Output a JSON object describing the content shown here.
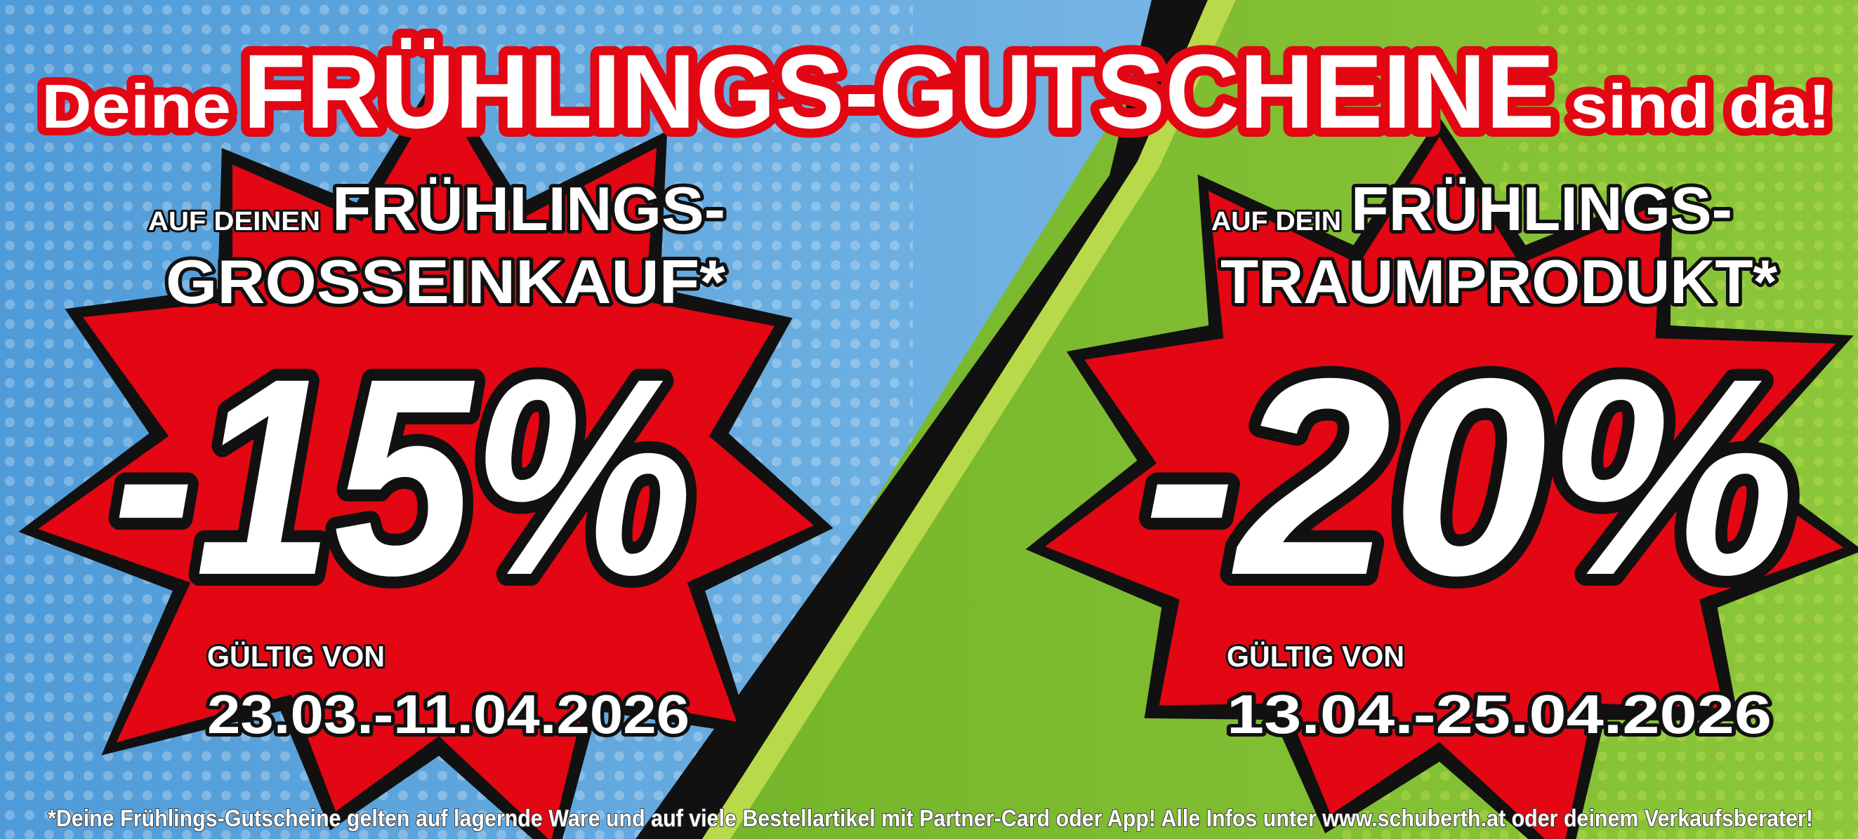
{
  "colors": {
    "blue": "#5aa6df",
    "green": "#7dbb2c",
    "red": "#e30613",
    "black": "#111111",
    "white": "#ffffff"
  },
  "headline": {
    "prefix": "Deine",
    "main": "FRÜHLINGS-GUTSCHEINE",
    "suffix": "sind da!"
  },
  "left_offer": {
    "small": "AUF DEINEN",
    "line1": "FRÜHLINGS-",
    "line2": "GROSSEINKAUF*",
    "discount": "-15%",
    "valid_label": "GÜLTIG VON",
    "valid_dates": "23.03.-11.04.2026"
  },
  "right_offer": {
    "small": "AUF DEIN",
    "line1": "FRÜHLINGS-",
    "line2": "TRAUMPRODUKT*",
    "discount": "-20%",
    "valid_label": "GÜLTIG VON",
    "valid_dates": "13.04.-25.04.2026"
  },
  "footnote": "*Deine Frühlings-Gutscheine gelten auf lagernde Ware und auf viele Bestellartikel mit Partner-Card oder App! Alle Infos unter www.schuberth.at oder deinem Verkaufsberater!"
}
